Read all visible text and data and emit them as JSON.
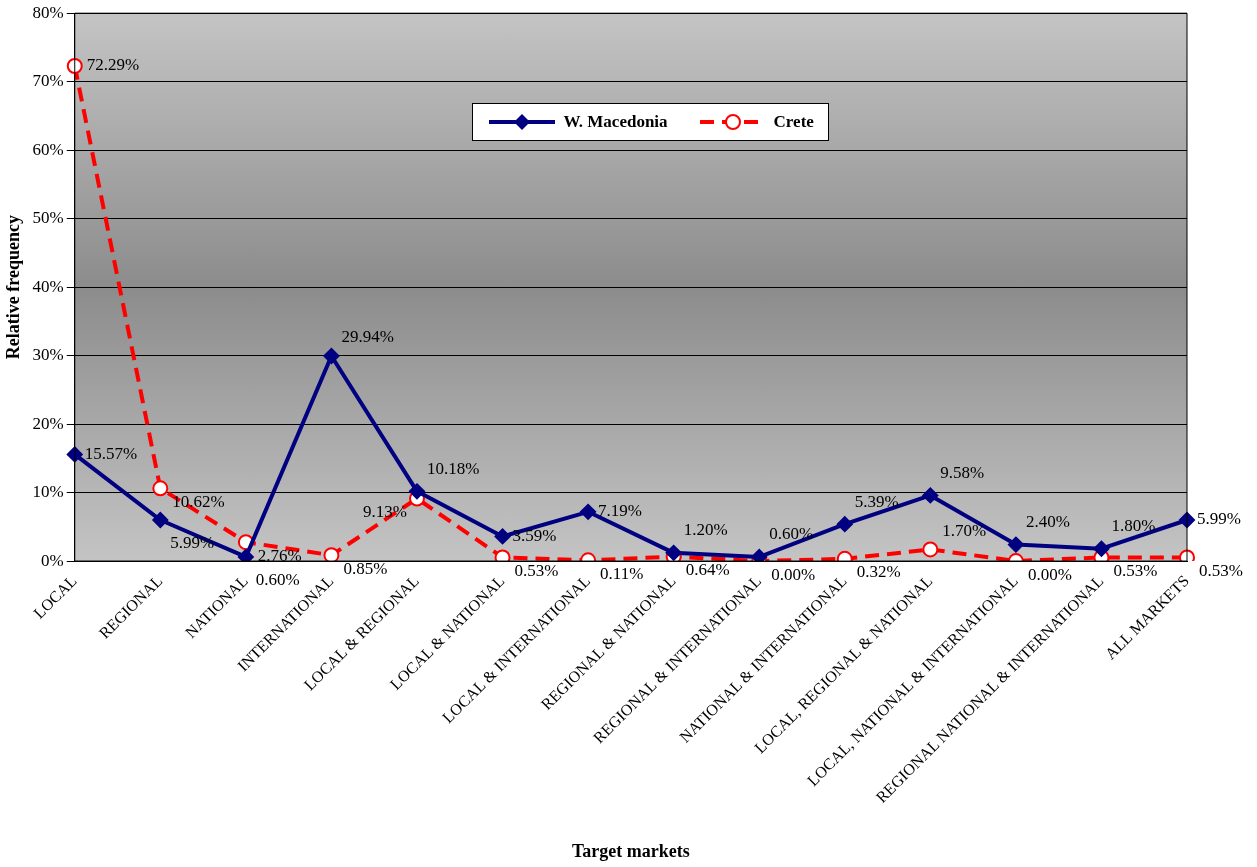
{
  "chart_data": {
    "type": "line",
    "xlabel": "Target markets",
    "ylabel": "Relative frequency",
    "categories": [
      "LOCAL",
      "REGIONAL",
      "NATIONAL",
      "INTERNATIONAL",
      "LOCAL & REGIONAL",
      "LOCAL & NATIONAL",
      "LOCAL & INTERNATIONAL",
      "REGIONAL & NATIONAL",
      "REGIONAL & INTERNATIONAL",
      "NATIONAL & INTERNATIONAL",
      "LOCAL, REGIONAL & NATIONAL",
      "LOCAL, NATIONAL & INTERNATIONAL",
      "REGIONAL NATIONAL & INTERNATIONAL",
      "ALL MARKETS"
    ],
    "series": [
      {
        "name": "W. Macedonia",
        "color": "#000080",
        "marker": "diamond",
        "line_style": "solid",
        "values": [
          15.57,
          5.99,
          0.6,
          29.94,
          10.18,
          3.59,
          7.19,
          1.2,
          0.6,
          5.39,
          9.58,
          2.4,
          1.8,
          5.99
        ],
        "value_labels": [
          "15.57%",
          "5.99%",
          "0.60%",
          "29.94%",
          "10.18%",
          "3.59%",
          "7.19%",
          "1.20%",
          "0.60%",
          "5.39%",
          "9.58%",
          "2.40%",
          "1.80%",
          "5.99%"
        ]
      },
      {
        "name": "Crete",
        "color": "#ff0000",
        "marker": "circle",
        "line_style": "dashed",
        "values": [
          72.29,
          10.62,
          2.76,
          0.85,
          9.13,
          0.53,
          0.11,
          0.64,
          0.0,
          0.32,
          1.7,
          0.0,
          0.53,
          0.53
        ],
        "value_labels": [
          "72.29%",
          "10.62%",
          "2.76%",
          "0.85%",
          "9.13%",
          "0.53%",
          "0.11%",
          "0.64%",
          "0.00%",
          "0.32%",
          "1.70%",
          "0.00%",
          "0.53%",
          "0.53%"
        ]
      }
    ],
    "ylim": [
      0,
      80
    ],
    "yticks": [
      {
        "value": 0,
        "label": "0%"
      },
      {
        "value": 10,
        "label": "10%"
      },
      {
        "value": 20,
        "label": "20%"
      },
      {
        "value": 30,
        "label": "30%"
      },
      {
        "value": 40,
        "label": "40%"
      },
      {
        "value": 50,
        "label": "50%"
      },
      {
        "value": 60,
        "label": "60%"
      },
      {
        "value": 70,
        "label": "70%"
      },
      {
        "value": 80,
        "label": "80%"
      }
    ],
    "grid": "y",
    "legend": "top"
  }
}
